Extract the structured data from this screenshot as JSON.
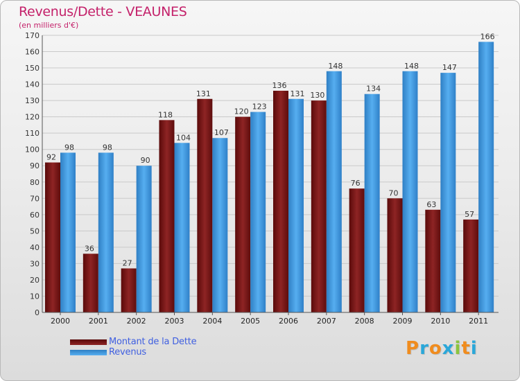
{
  "title": "Revenus/Dette - VEAUNES",
  "subtitle": "(en milliers d'€)",
  "logo": {
    "text": "Proxiti",
    "letters": [
      {
        "ch": "P",
        "color": "#f08c1e"
      },
      {
        "ch": "r",
        "color": "#2aa7d9"
      },
      {
        "ch": "o",
        "color": "#f08c1e"
      },
      {
        "ch": "x",
        "color": "#2aa7d9"
      },
      {
        "ch": "i",
        "color": "#8bc43f"
      },
      {
        "ch": "t",
        "color": "#f08c1e"
      },
      {
        "ch": "i",
        "color": "#2aa7d9"
      }
    ]
  },
  "legend": [
    {
      "label": "Montant de la Dette",
      "color": "#7a1515"
    },
    {
      "label": "Revenus",
      "color": "#3d94da"
    }
  ],
  "chart_data": {
    "type": "bar",
    "title": "Revenus/Dette - VEAUNES",
    "ylabel": "(en milliers d'€)",
    "categories": [
      "2000",
      "2001",
      "2002",
      "2003",
      "2004",
      "2005",
      "2006",
      "2007",
      "2008",
      "2009",
      "2010",
      "2011"
    ],
    "series": [
      {
        "name": "Montant de la Dette",
        "color": "#7a1515",
        "values": [
          92,
          36,
          27,
          118,
          131,
          120,
          136,
          130,
          76,
          70,
          63,
          57
        ]
      },
      {
        "name": "Revenus",
        "color": "#3d94da",
        "values": [
          98,
          98,
          90,
          104,
          107,
          123,
          131,
          148,
          134,
          148,
          147,
          166
        ]
      }
    ],
    "ylim": [
      0,
      170
    ],
    "yticks": [
      0,
      10,
      20,
      30,
      40,
      50,
      60,
      70,
      80,
      90,
      100,
      110,
      120,
      130,
      140,
      150,
      160,
      170
    ],
    "grid": true,
    "legend_position": "bottom-left"
  }
}
